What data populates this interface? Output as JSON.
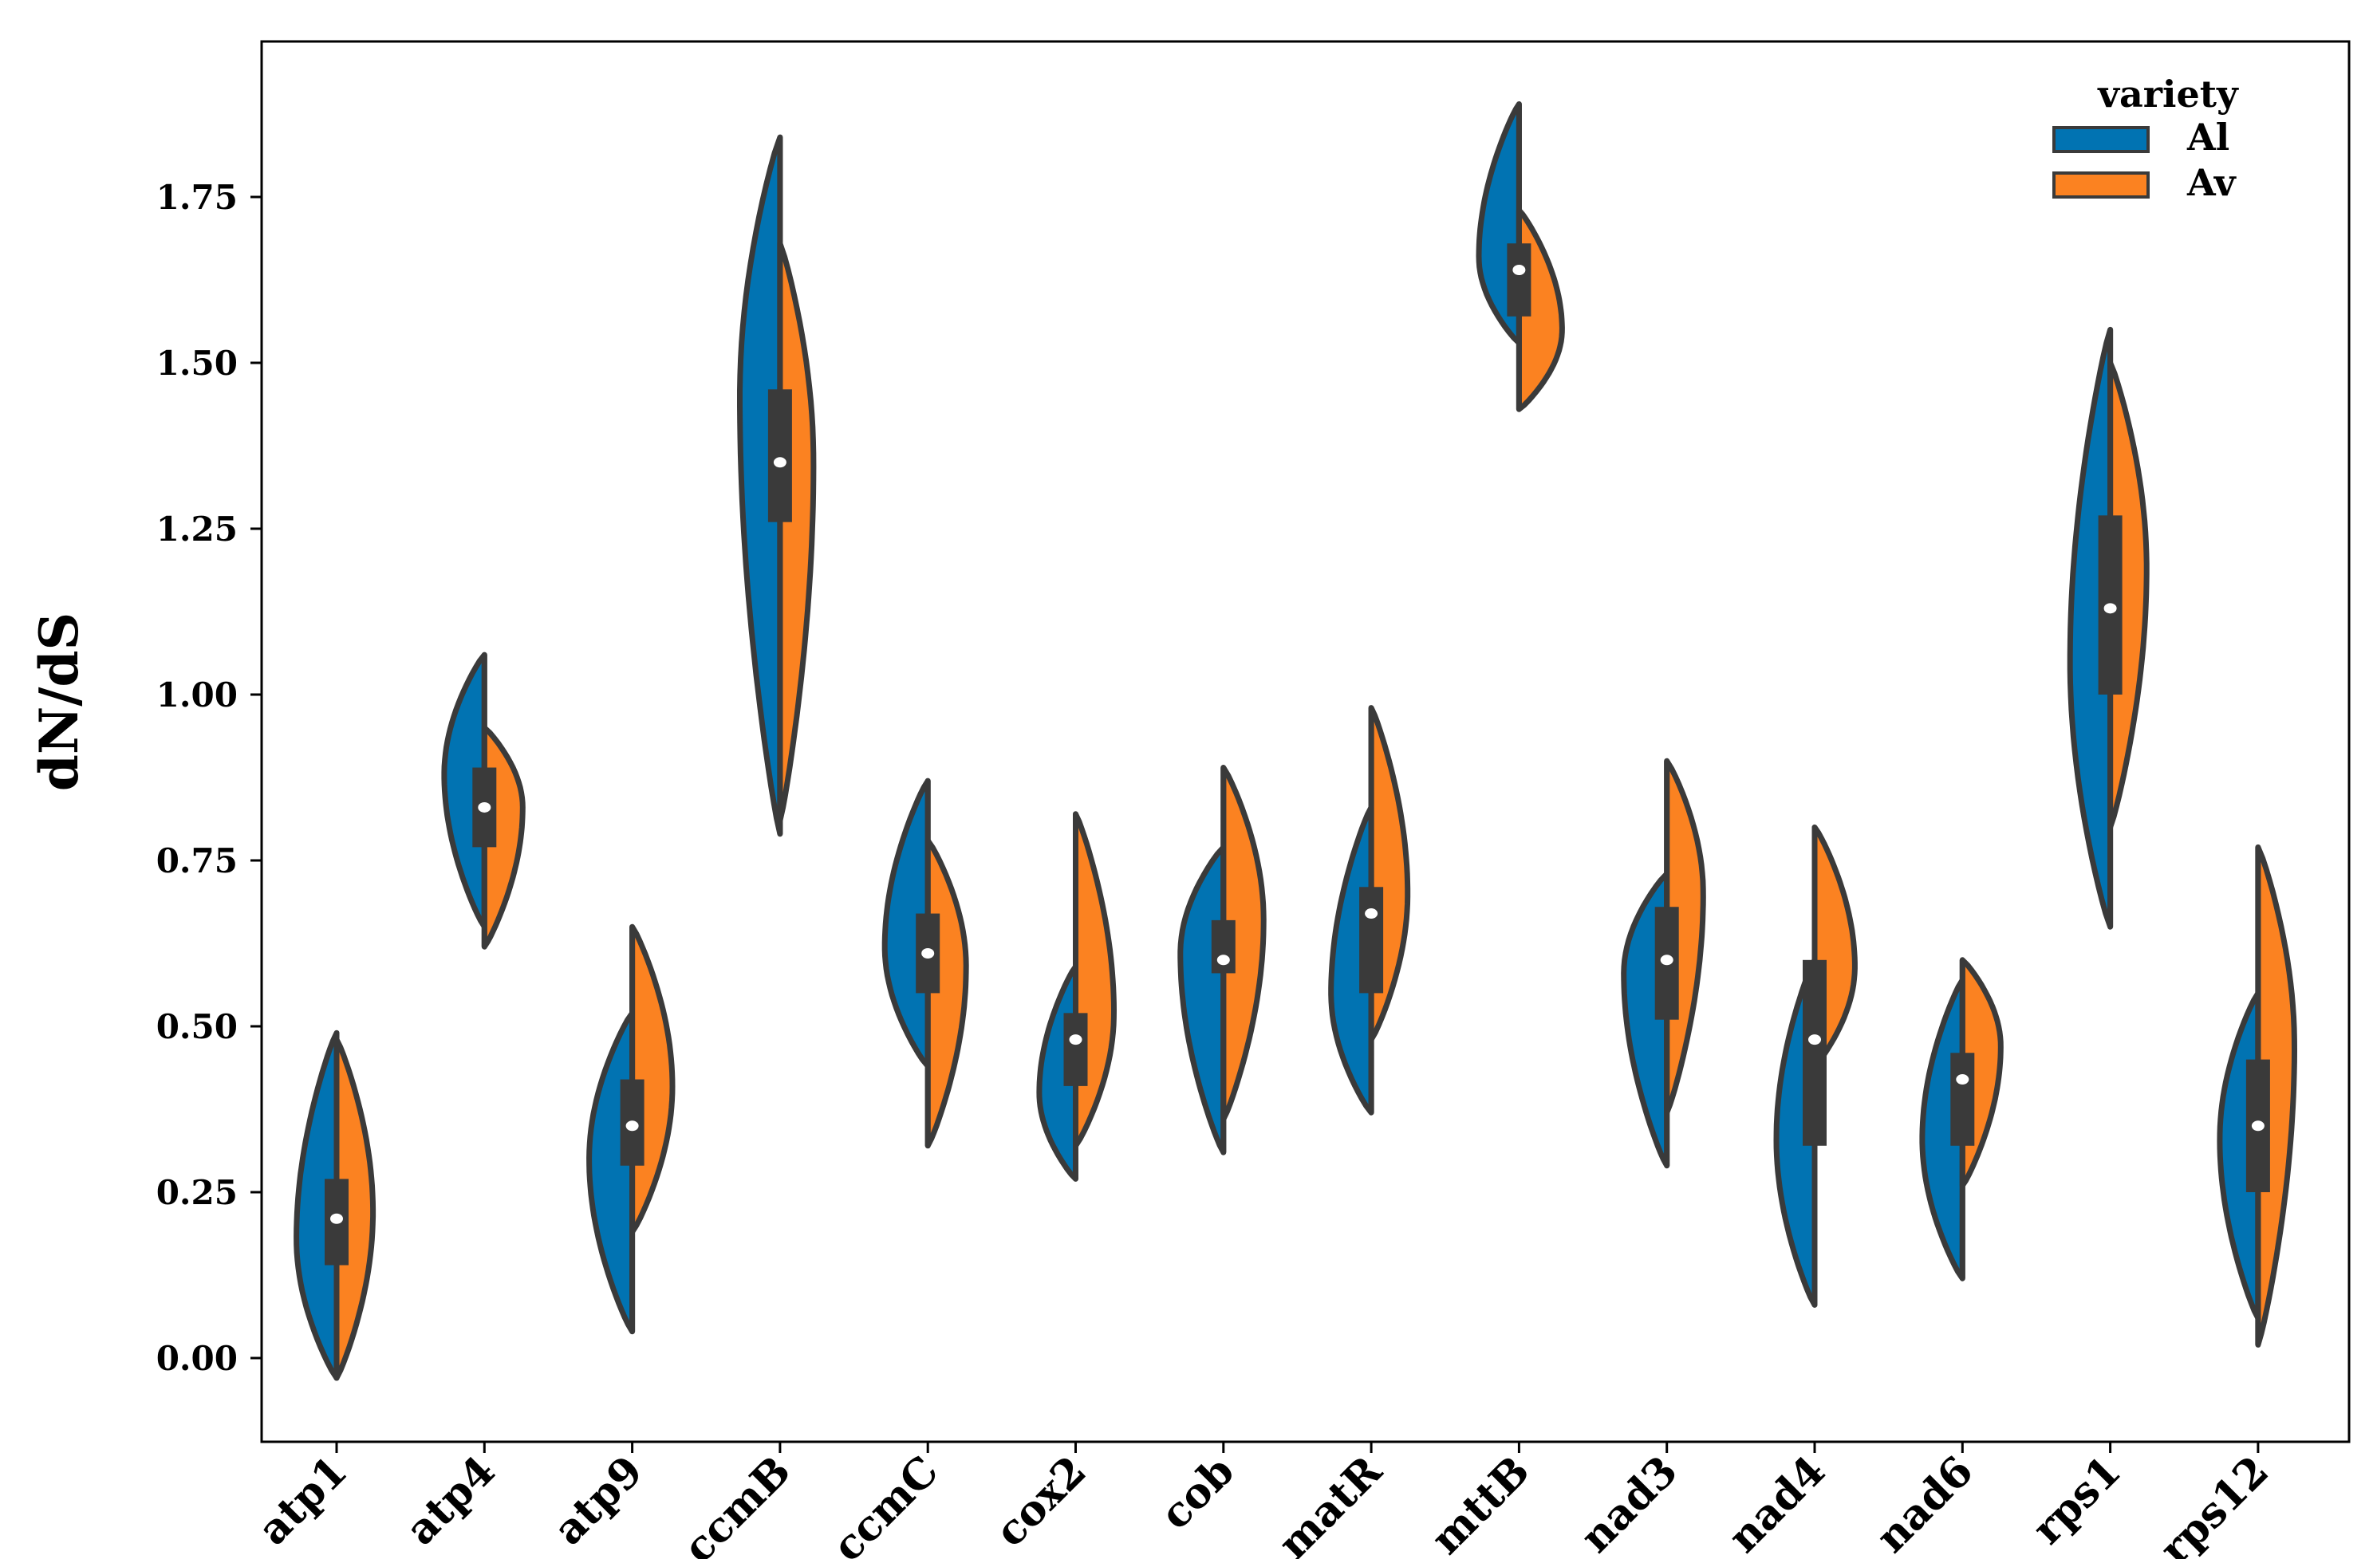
{
  "chart_data": {
    "type": "violin",
    "split": true,
    "title": "",
    "xlabel": "",
    "ylabel": "dN/dS",
    "ylim": [
      -0.13,
      2.0
    ],
    "yticks": [
      0.0,
      0.25,
      0.5,
      0.75,
      1.0,
      1.25,
      1.5,
      1.75
    ],
    "ytick_labels": [
      "0.00",
      "0.25",
      "0.50",
      "0.75",
      "1.00",
      "1.25",
      "1.50",
      "1.75"
    ],
    "categories": [
      "atp1",
      "atp4",
      "atp9",
      "ccmB",
      "ccmC",
      "cox2",
      "cob",
      "matR",
      "mttB",
      "nad3",
      "nad4",
      "nad6",
      "rps1",
      "rps12"
    ],
    "legend": {
      "title": "variety",
      "location": "top-right",
      "entries": [
        {
          "label": "Al",
          "color": "#0173b2"
        },
        {
          "label": "Av",
          "color": "#fb8221"
        }
      ]
    },
    "series": [
      {
        "name": "Al",
        "color": "#0173b2",
        "min": [
          -0.03,
          0.65,
          0.04,
          0.79,
          0.44,
          0.27,
          0.31,
          0.37,
          1.53,
          0.29,
          0.08,
          0.12,
          0.65,
          0.06
        ],
        "max": [
          0.49,
          1.06,
          0.52,
          1.84,
          0.87,
          0.59,
          0.77,
          0.83,
          1.89,
          0.73,
          0.6,
          0.57,
          1.55,
          0.55
        ],
        "mode": [
          0.18,
          0.88,
          0.3,
          1.45,
          0.62,
          0.4,
          0.61,
          0.55,
          1.66,
          0.58,
          0.33,
          0.33,
          1.05,
          0.33
        ],
        "width": [
          0.42,
          0.42,
          0.45,
          0.42,
          0.45,
          0.38,
          0.45,
          0.42,
          0.42,
          0.45,
          0.4,
          0.42,
          0.42,
          0.4
        ]
      },
      {
        "name": "Av",
        "color": "#fb8221",
        "min": [
          -0.03,
          0.62,
          0.19,
          0.81,
          0.32,
          0.32,
          0.36,
          0.48,
          1.43,
          0.37,
          0.44,
          0.26,
          0.8,
          0.02
        ],
        "max": [
          0.48,
          0.95,
          0.65,
          1.68,
          0.78,
          0.82,
          0.89,
          0.98,
          1.73,
          0.9,
          0.8,
          0.6,
          1.5,
          0.77
        ],
        "mode": [
          0.22,
          0.83,
          0.41,
          1.35,
          0.59,
          0.52,
          0.66,
          0.7,
          1.55,
          0.7,
          0.59,
          0.47,
          1.19,
          0.47
        ],
        "width": [
          0.38,
          0.4,
          0.42,
          0.35,
          0.4,
          0.4,
          0.42,
          0.38,
          0.45,
          0.38,
          0.42,
          0.4,
          0.38,
          0.38
        ]
      }
    ],
    "box": {
      "q1": [
        0.14,
        0.77,
        0.29,
        1.26,
        0.55,
        0.41,
        0.58,
        0.55,
        1.57,
        0.51,
        0.32,
        0.32,
        1.0,
        0.25
      ],
      "q3": [
        0.27,
        0.89,
        0.42,
        1.46,
        0.67,
        0.52,
        0.66,
        0.71,
        1.68,
        0.68,
        0.6,
        0.46,
        1.27,
        0.45
      ],
      "median": [
        0.21,
        0.83,
        0.35,
        1.35,
        0.61,
        0.48,
        0.6,
        0.67,
        1.64,
        0.6,
        0.48,
        0.42,
        1.13,
        0.35
      ]
    }
  }
}
